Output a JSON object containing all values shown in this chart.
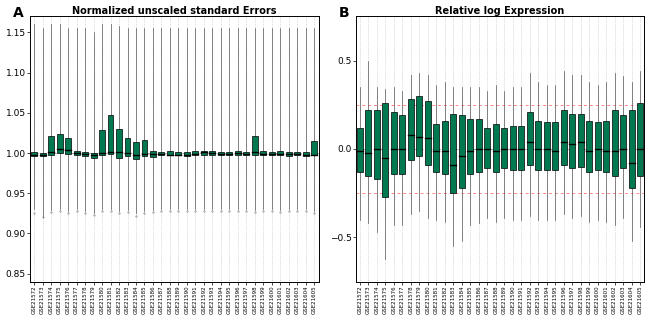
{
  "title_A": "Normalized unscaled standard Errors",
  "title_B": "Relative log Expression",
  "label_A": "A",
  "label_B": "B",
  "n_samples": 34,
  "sample_labels": [
    "GSE21572",
    "GSE21573",
    "GSE21574",
    "GSE21575",
    "GSE21576",
    "GSE21577",
    "GSE21578",
    "GSE21579",
    "GSE21580",
    "GSE21581",
    "GSE21582",
    "GSE21583",
    "GSE21584",
    "GSE21585",
    "GSE21586",
    "GSE21587",
    "GSE21588",
    "GSE21589",
    "GSE21590",
    "GSE21591",
    "GSE21592",
    "GSE21593",
    "GSE21594",
    "GSE21595",
    "GSE21596",
    "GSE21597",
    "GSE21598",
    "GSE21599",
    "GSE21600",
    "GSE21601",
    "GSE21602",
    "GSE21603",
    "GSE21604",
    "GSE21605"
  ],
  "box_color": "#007850",
  "median_color": "#000000",
  "ref_line_color_A": "#aaaaaa",
  "ref_line_color_B": "#ff8888",
  "ylim_A": [
    0.84,
    1.17
  ],
  "ylim_B": [
    -0.75,
    0.75
  ],
  "yticks_A": [
    0.85,
    0.9,
    0.95,
    1.0,
    1.05,
    1.1,
    1.15
  ],
  "yticks_B": [
    -0.5,
    0.0,
    0.5
  ],
  "ref_A": 1.0,
  "ref_B_upper": 0.25,
  "ref_B_lower": -0.25,
  "background_color": "#ffffff",
  "nuse_data": {
    "medians": [
      0.998,
      0.998,
      1.001,
      1.005,
      1.004,
      1.0,
      0.999,
      0.997,
      1.0,
      1.001,
      1.001,
      1.0,
      0.998,
      0.999,
      0.999,
      0.999,
      0.998,
      0.998,
      0.998,
      0.999,
      1.001,
      1.0,
      0.999,
      0.999,
      1.0,
      0.999,
      1.001,
      0.999,
      0.999,
      0.999,
      0.999,
      0.999,
      0.998,
      0.998
    ],
    "q1": [
      0.996,
      0.996,
      0.998,
      1.0,
      0.999,
      0.997,
      0.996,
      0.994,
      0.998,
      0.999,
      0.994,
      0.996,
      0.992,
      0.996,
      0.995,
      0.997,
      0.997,
      0.997,
      0.996,
      0.997,
      0.998,
      0.997,
      0.997,
      0.997,
      0.998,
      0.997,
      0.998,
      0.997,
      0.997,
      0.997,
      0.996,
      0.997,
      0.996,
      0.997
    ],
    "q3": [
      1.001,
      1.0,
      1.021,
      1.024,
      1.019,
      1.003,
      1.001,
      1.0,
      1.029,
      1.047,
      1.03,
      1.019,
      1.014,
      1.016,
      1.003,
      1.001,
      1.002,
      1.001,
      1.001,
      1.002,
      1.003,
      1.002,
      1.001,
      1.001,
      1.002,
      1.001,
      1.021,
      1.002,
      1.001,
      1.002,
      1.001,
      1.001,
      1.001,
      1.015
    ],
    "whislo": [
      0.93,
      0.92,
      0.929,
      0.93,
      0.928,
      0.93,
      0.928,
      0.925,
      0.93,
      0.93,
      0.928,
      0.929,
      0.925,
      0.928,
      0.929,
      0.93,
      0.93,
      0.93,
      0.93,
      0.93,
      0.93,
      0.93,
      0.93,
      0.93,
      0.93,
      0.93,
      0.929,
      0.93,
      0.93,
      0.929,
      0.93,
      0.93,
      0.93,
      0.928
    ],
    "whishi": [
      1.16,
      1.155,
      1.16,
      1.16,
      1.155,
      1.155,
      1.155,
      1.15,
      1.16,
      1.16,
      1.158,
      1.155,
      1.155,
      1.155,
      1.155,
      1.155,
      1.155,
      1.155,
      1.155,
      1.155,
      1.155,
      1.155,
      1.155,
      1.155,
      1.155,
      1.155,
      1.155,
      1.155,
      1.155,
      1.155,
      1.155,
      1.155,
      1.155,
      1.155
    ],
    "fliers_lo": [
      0.925,
      0.921,
      0.927,
      0.928,
      0.926,
      0.928,
      0.926,
      0.923,
      0.928,
      0.928,
      0.925,
      0.927,
      0.922,
      0.926,
      0.927,
      0.928,
      0.928,
      0.928,
      0.928,
      0.928,
      0.928,
      0.928,
      0.928,
      0.928,
      0.928,
      0.928,
      0.927,
      0.928,
      0.928,
      0.927,
      0.928,
      0.928,
      0.928,
      0.926
    ]
  },
  "rle_data": {
    "medians": [
      -0.01,
      -0.02,
      0.0,
      -0.05,
      0.0,
      0.0,
      0.08,
      0.07,
      0.06,
      -0.01,
      -0.01,
      -0.09,
      -0.04,
      -0.01,
      0.0,
      0.0,
      -0.01,
      0.0,
      0.0,
      0.0,
      0.04,
      0.0,
      0.0,
      -0.01,
      0.04,
      0.03,
      0.04,
      -0.01,
      0.0,
      -0.01,
      -0.01,
      0.0,
      -0.08,
      0.0
    ],
    "q1": [
      -0.13,
      -0.15,
      -0.17,
      -0.27,
      -0.14,
      -0.14,
      -0.06,
      -0.04,
      -0.09,
      -0.13,
      -0.14,
      -0.25,
      -0.22,
      -0.14,
      -0.13,
      -0.11,
      -0.13,
      -0.11,
      -0.12,
      -0.12,
      -0.09,
      -0.12,
      -0.12,
      -0.12,
      -0.09,
      -0.11,
      -0.1,
      -0.13,
      -0.12,
      -0.13,
      -0.15,
      -0.11,
      -0.22,
      -0.15
    ],
    "q3": [
      0.12,
      0.22,
      0.22,
      0.26,
      0.21,
      0.19,
      0.28,
      0.3,
      0.27,
      0.14,
      0.16,
      0.2,
      0.19,
      0.17,
      0.17,
      0.12,
      0.14,
      0.12,
      0.13,
      0.13,
      0.21,
      0.16,
      0.15,
      0.15,
      0.22,
      0.2,
      0.2,
      0.16,
      0.15,
      0.16,
      0.22,
      0.19,
      0.22,
      0.26
    ],
    "whislo": [
      -0.4,
      -0.42,
      -0.47,
      -0.62,
      -0.43,
      -0.43,
      -0.37,
      -0.35,
      -0.39,
      -0.4,
      -0.41,
      -0.55,
      -0.52,
      -0.43,
      -0.42,
      -0.39,
      -0.41,
      -0.39,
      -0.4,
      -0.4,
      -0.38,
      -0.4,
      -0.4,
      -0.4,
      -0.37,
      -0.39,
      -0.38,
      -0.41,
      -0.4,
      -0.41,
      -0.43,
      -0.39,
      -0.52,
      -0.44
    ],
    "whishi": [
      0.35,
      0.5,
      0.35,
      0.34,
      0.35,
      0.33,
      0.42,
      0.43,
      0.42,
      0.36,
      0.38,
      0.35,
      0.35,
      0.35,
      0.35,
      0.33,
      0.36,
      0.33,
      0.35,
      0.35,
      0.43,
      0.38,
      0.36,
      0.36,
      0.44,
      0.42,
      0.42,
      0.38,
      0.36,
      0.38,
      0.43,
      0.41,
      0.38,
      0.44
    ]
  }
}
